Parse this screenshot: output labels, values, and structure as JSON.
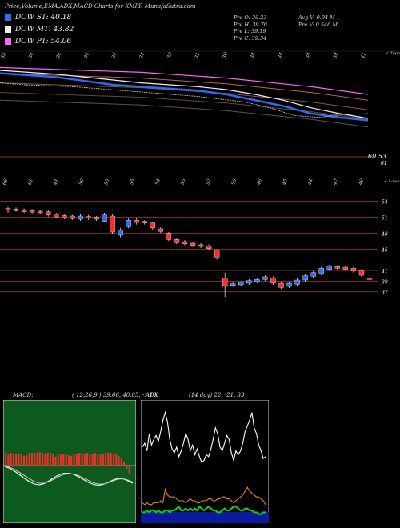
{
  "header": {
    "title": "Price,Volume,EMA,ADX,MACD Charts for KMPR MunafaSutra.com"
  },
  "legend": [
    {
      "label": "DOW ST: 40.18",
      "color": "#2a6cff"
    },
    {
      "label": "DOW MT: 43.82",
      "color": "#f0f0f0"
    },
    {
      "label": "DOW PT: 54.06",
      "color": "#ff66ff"
    }
  ],
  "info": {
    "col1": [
      "Pre O: 39.23",
      "Pre H: 39.70",
      "Pre L: 39.19",
      "Pre C: 39.34"
    ],
    "col2": [
      "Avg V: 0.94 M",
      "Pre V: 0.546 M"
    ]
  },
  "panels": {
    "macd_label": "MACD:",
    "macd_values": "( 12,26,9 ) 39.66, 40.85, -1.19",
    "adx_label": "ADX",
    "adx_values": "(14 day) 22, -21, 33"
  },
  "chart_data": [
    {
      "type": "line",
      "name": "volume-ema-panel",
      "x_tick_labels": [
        "35",
        "34",
        "34",
        "34",
        "34",
        "34",
        "38",
        "31",
        "30",
        "34",
        "34",
        "34",
        "34",
        "41"
      ],
      "edge_label": "< Topo",
      "last_label": "60.53",
      "level_label": "61",
      "series": [
        {
          "color": "#ff66ff",
          "values": [
            58.8,
            58.7,
            58.6,
            58.5,
            58.4,
            58.3,
            58.1,
            57.9,
            57.7,
            57.4,
            57.1,
            56.8,
            56.4,
            56.0
          ]
        },
        {
          "color": "#2a6cff",
          "values": [
            58.2,
            58.0,
            57.8,
            57.4,
            57.0,
            56.8,
            56.6,
            56.4,
            56.0,
            55.4,
            54.8,
            54.0,
            53.6,
            53.3
          ]
        },
        {
          "color": "#f0f0f0",
          "values": [
            58.5,
            58.3,
            58.1,
            57.8,
            57.5,
            57.2,
            57.0,
            56.8,
            56.5,
            56.0,
            55.4,
            54.6,
            54.0,
            53.5
          ]
        }
      ]
    },
    {
      "type": "candlestick",
      "name": "price-panel",
      "x_tick_labels": [
        "66",
        "61",
        "41",
        "50",
        "55",
        "55",
        "54",
        "55",
        "52",
        "50",
        "46",
        "45",
        "44",
        "47",
        "40"
      ],
      "edge_label": "< Lower",
      "y_tick_labels": [
        "54",
        "51",
        "48",
        "45",
        "41",
        "39",
        "37"
      ],
      "ylim": [
        35,
        56
      ],
      "candles": [
        {
          "o": 52.6,
          "c": 52.3,
          "h": 52.9,
          "l": 51.8
        },
        {
          "o": 52.5,
          "c": 52.2,
          "h": 52.8,
          "l": 52.0
        },
        {
          "o": 52.4,
          "c": 52.0,
          "h": 52.6,
          "l": 51.8
        },
        {
          "o": 52.2,
          "c": 51.9,
          "h": 52.5,
          "l": 51.7
        },
        {
          "o": 52.1,
          "c": 51.8,
          "h": 52.4,
          "l": 51.6
        },
        {
          "o": 52.0,
          "c": 51.4,
          "h": 52.3,
          "l": 51.1
        },
        {
          "o": 51.6,
          "c": 51.0,
          "h": 51.8,
          "l": 50.8
        },
        {
          "o": 51.3,
          "c": 50.9,
          "h": 51.5,
          "l": 50.6
        },
        {
          "o": 51.2,
          "c": 50.7,
          "h": 51.4,
          "l": 50.5
        },
        {
          "o": 50.6,
          "c": 51.2,
          "h": 51.6,
          "l": 50.3
        },
        {
          "o": 51.1,
          "c": 50.8,
          "h": 51.4,
          "l": 50.5
        },
        {
          "o": 51.0,
          "c": 50.6,
          "h": 51.2,
          "l": 50.3
        },
        {
          "o": 50.2,
          "c": 51.4,
          "h": 51.8,
          "l": 50.0
        },
        {
          "o": 51.2,
          "c": 48.2,
          "h": 51.5,
          "l": 47.8
        },
        {
          "o": 47.6,
          "c": 48.6,
          "h": 49.0,
          "l": 47.2
        },
        {
          "o": 49.2,
          "c": 50.4,
          "h": 50.8,
          "l": 48.9
        },
        {
          "o": 50.4,
          "c": 50.0,
          "h": 50.8,
          "l": 49.6
        },
        {
          "o": 50.2,
          "c": 49.9,
          "h": 50.4,
          "l": 49.6
        },
        {
          "o": 49.9,
          "c": 49.0,
          "h": 50.1,
          "l": 48.6
        },
        {
          "o": 48.8,
          "c": 48.3,
          "h": 49.1,
          "l": 48.0
        },
        {
          "o": 48.0,
          "c": 46.8,
          "h": 48.2,
          "l": 46.5
        },
        {
          "o": 46.8,
          "c": 46.2,
          "h": 47.1,
          "l": 45.9
        },
        {
          "o": 46.4,
          "c": 46.0,
          "h": 46.7,
          "l": 45.7
        },
        {
          "o": 46.1,
          "c": 45.7,
          "h": 46.4,
          "l": 45.4
        },
        {
          "o": 45.8,
          "c": 45.5,
          "h": 46.1,
          "l": 45.2
        },
        {
          "o": 45.6,
          "c": 45.1,
          "h": 45.9,
          "l": 44.9
        },
        {
          "o": 44.8,
          "c": 43.5,
          "h": 45.0,
          "l": 43.0
        },
        {
          "o": 39.6,
          "c": 38.0,
          "h": 40.6,
          "l": 36.0
        },
        {
          "o": 38.2,
          "c": 38.5,
          "h": 38.8,
          "l": 37.9
        },
        {
          "o": 38.3,
          "c": 38.8,
          "h": 39.0,
          "l": 38.0
        },
        {
          "o": 38.6,
          "c": 39.1,
          "h": 39.4,
          "l": 38.3
        },
        {
          "o": 38.9,
          "c": 39.3,
          "h": 39.6,
          "l": 38.6
        },
        {
          "o": 39.3,
          "c": 39.8,
          "h": 40.1,
          "l": 39.0
        },
        {
          "o": 39.6,
          "c": 38.6,
          "h": 39.9,
          "l": 38.3
        },
        {
          "o": 38.6,
          "c": 37.8,
          "h": 38.9,
          "l": 37.5
        },
        {
          "o": 38.0,
          "c": 38.6,
          "h": 38.9,
          "l": 37.7
        },
        {
          "o": 38.4,
          "c": 39.2,
          "h": 39.5,
          "l": 38.1
        },
        {
          "o": 39.2,
          "c": 40.0,
          "h": 40.3,
          "l": 38.9
        },
        {
          "o": 39.9,
          "c": 40.6,
          "h": 40.9,
          "l": 39.6
        },
        {
          "o": 40.4,
          "c": 41.4,
          "h": 41.7,
          "l": 40.1
        },
        {
          "o": 41.2,
          "c": 41.8,
          "h": 42.1,
          "l": 40.9
        },
        {
          "o": 41.7,
          "c": 41.4,
          "h": 42.0,
          "l": 41.1
        },
        {
          "o": 41.6,
          "c": 41.2,
          "h": 41.9,
          "l": 40.9
        },
        {
          "o": 41.4,
          "c": 40.9,
          "h": 41.7,
          "l": 40.6
        },
        {
          "o": 41.0,
          "c": 40.1,
          "h": 41.3,
          "l": 39.8
        },
        {
          "o": 39.6,
          "c": 39.3,
          "h": 39.7,
          "l": 39.2
        }
      ]
    },
    {
      "type": "line",
      "name": "macd-panel",
      "ylim": [
        -6,
        6
      ],
      "histogram": [
        1.7,
        1.5,
        1.6,
        1.5,
        1.5,
        1.5,
        1.4,
        1.2,
        1.3,
        1.6,
        1.6,
        1.6,
        1.6,
        1.7,
        1.6,
        1.5,
        1.6,
        1.6,
        1.4,
        1.1,
        1.5,
        1.5,
        1.5,
        1.4,
        1.3,
        1.2,
        1.4,
        1.5,
        1.6,
        1.6,
        1.5,
        1.6,
        1.5,
        1.5,
        1.6,
        1.5,
        1.5,
        1.5,
        1.6,
        1.6,
        1.6,
        1.5,
        1.4,
        1.2,
        0.9,
        0.5,
        -0.4,
        -1.0
      ],
      "series": [
        {
          "name": "MACD",
          "color": "#ffffff",
          "values": [
            1.4,
            0.9,
            0.2,
            -0.7,
            -1.6,
            -2.4,
            -3.0,
            -3.2,
            -2.9,
            -2.2,
            -1.4,
            -0.7,
            -0.3,
            -0.3,
            -0.6,
            -1.2,
            -1.9,
            -2.6,
            -3.1,
            -3.3,
            -3.1,
            -2.6,
            -2.0,
            -1.6,
            -1.7,
            -2.2,
            -2.8
          ]
        },
        {
          "name": "Signal",
          "color": "#bfbfbf",
          "values": [
            1.5,
            1.2,
            0.6,
            -0.1,
            -0.9,
            -1.7,
            -2.4,
            -2.8,
            -2.8,
            -2.4,
            -1.8,
            -1.1,
            -0.6,
            -0.4,
            -0.5,
            -0.9,
            -1.5,
            -2.1,
            -2.7,
            -3.0,
            -3.0,
            -2.7,
            -2.2,
            -1.8,
            -1.7,
            -2.0,
            -2.5
          ]
        }
      ]
    },
    {
      "type": "line",
      "name": "adx-panel",
      "ylim": [
        0,
        60
      ],
      "series": [
        {
          "name": "+DI",
          "color": "#ffffff",
          "values": [
            38,
            40,
            36,
            45,
            39,
            42,
            44,
            41,
            46,
            52,
            56,
            51,
            42,
            37,
            35,
            38,
            33,
            36,
            40,
            45,
            42,
            36,
            39,
            34,
            37,
            33,
            30,
            31,
            34,
            33,
            37,
            42,
            48,
            45,
            38,
            36,
            40,
            44,
            42,
            35,
            31,
            36,
            34,
            36,
            40,
            46,
            49,
            52,
            56,
            48,
            45,
            39,
            36,
            32,
            33
          ]
        },
        {
          "name": "-DI",
          "color": "#00dd00",
          "values": [
            4,
            4,
            5,
            4,
            5,
            5,
            4,
            5,
            4,
            4,
            5,
            5,
            4,
            5,
            5,
            6,
            7,
            5,
            5,
            6,
            5,
            6,
            5,
            6,
            5,
            7,
            6,
            5,
            6,
            7,
            6,
            5,
            5,
            4,
            4,
            5,
            6,
            5,
            5,
            6,
            7,
            7,
            6,
            5,
            5,
            6,
            6,
            5,
            5,
            4,
            4,
            3,
            3,
            4,
            4
          ]
        },
        {
          "name": "ADX",
          "color": "#e08a00",
          "values": [
            9,
            8,
            9,
            8,
            8,
            9,
            9,
            9,
            10,
            9,
            16,
            13,
            12,
            12,
            12,
            11,
            10,
            10,
            10,
            9,
            10,
            11,
            10,
            10,
            9,
            9,
            10,
            10,
            10,
            11,
            11,
            10,
            10,
            11,
            11,
            12,
            12,
            11,
            11,
            10,
            9,
            10,
            11,
            12,
            13,
            15,
            17,
            15,
            14,
            13,
            12,
            12,
            11,
            10,
            8
          ]
        }
      ]
    }
  ]
}
